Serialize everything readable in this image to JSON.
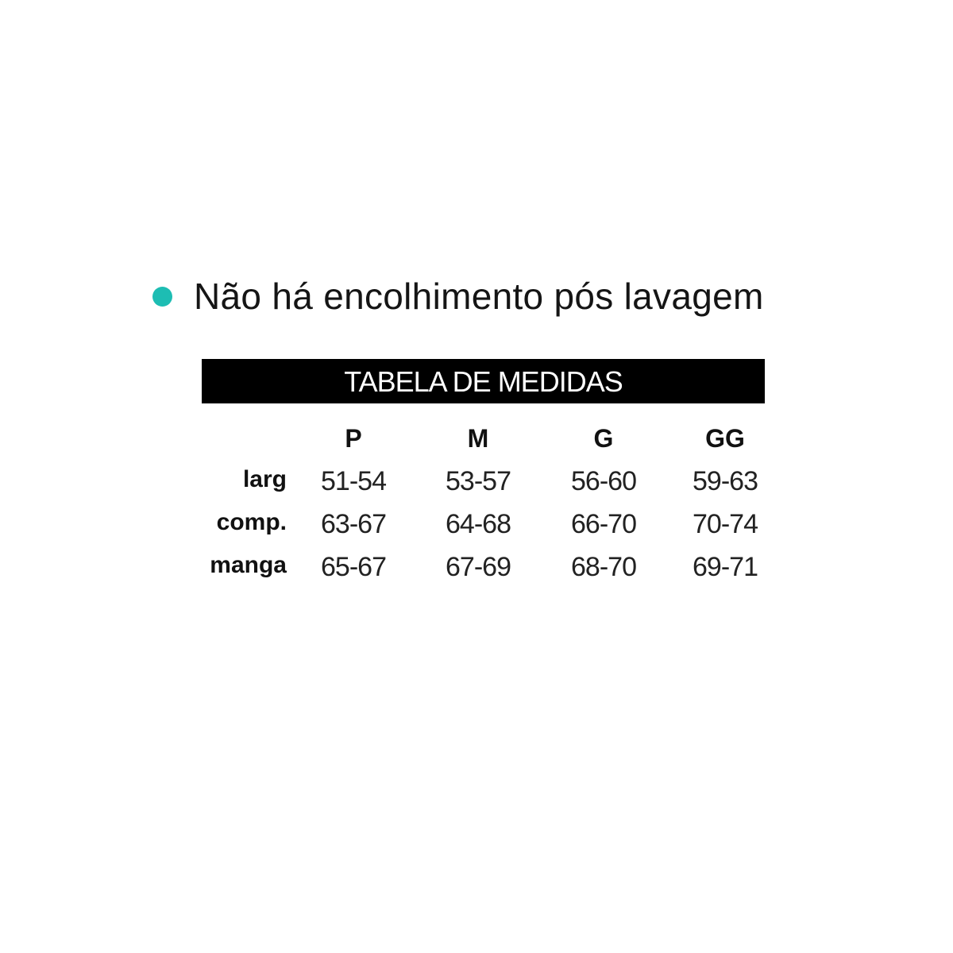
{
  "note": {
    "text": "Não há encolhimento pós lavagem",
    "bullet_color": "#1dbdb3",
    "bullet_icon": "filled-circle"
  },
  "table": {
    "title": "TABELA DE MEDIDAS",
    "sizes": [
      "P",
      "M",
      "G",
      "GG"
    ],
    "rows": [
      {
        "label": "larg",
        "values": [
          "51-54",
          "53-57",
          "56-60",
          "59-63"
        ]
      },
      {
        "label": "comp.",
        "values": [
          "63-67",
          "64-68",
          "66-70",
          "70-74"
        ]
      },
      {
        "label": "manga",
        "values": [
          "65-67",
          "67-69",
          "68-70",
          "69-71"
        ]
      }
    ]
  }
}
